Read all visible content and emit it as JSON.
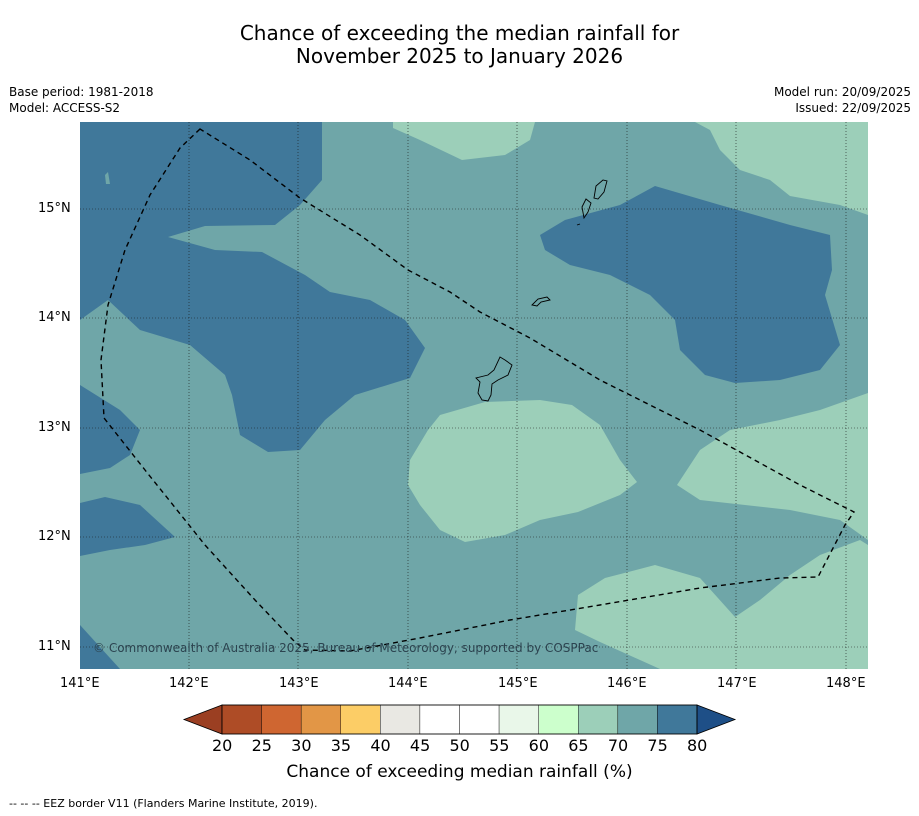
{
  "title_line1": "Chance of exceeding the median rainfall for",
  "title_line2": "November 2025 to January 2026",
  "base_period": "Base period: 1981-2018",
  "model": "Model: ACCESS-S2",
  "model_run": "Model run: 20/09/2025",
  "issued": "Issued: 22/09/2025",
  "copyright": "© Commonwealth of Australia 2025, Bureau of Meteorology, supported by COSPPac",
  "lat_labels": [
    "15°N",
    "14°N",
    "13°N",
    "12°N",
    "11°N"
  ],
  "lon_labels": [
    "141°E",
    "142°E",
    "143°E",
    "144°E",
    "145°E",
    "146°E",
    "147°E",
    "148°E"
  ],
  "colorbar": {
    "title": "Chance of exceeding median rainfall (%)",
    "ticks": [
      "20",
      "25",
      "30",
      "35",
      "40",
      "45",
      "50",
      "55",
      "60",
      "65",
      "70",
      "75",
      "80"
    ],
    "colors": [
      "#ae4c26",
      "#cf6631",
      "#e29646",
      "#fccd66",
      "#e9e8e3",
      "#ffffff",
      "#ffffff",
      "#e9f7e9",
      "#ccffcc",
      "#9ccfb9",
      "#6fa6a8",
      "#40789a"
    ],
    "under_color": "#9b3f22",
    "over_color": "#1e4f87"
  },
  "footnote": "--  --  -- EEZ border V11 (Flanders Marine Institute, 2019)."
}
